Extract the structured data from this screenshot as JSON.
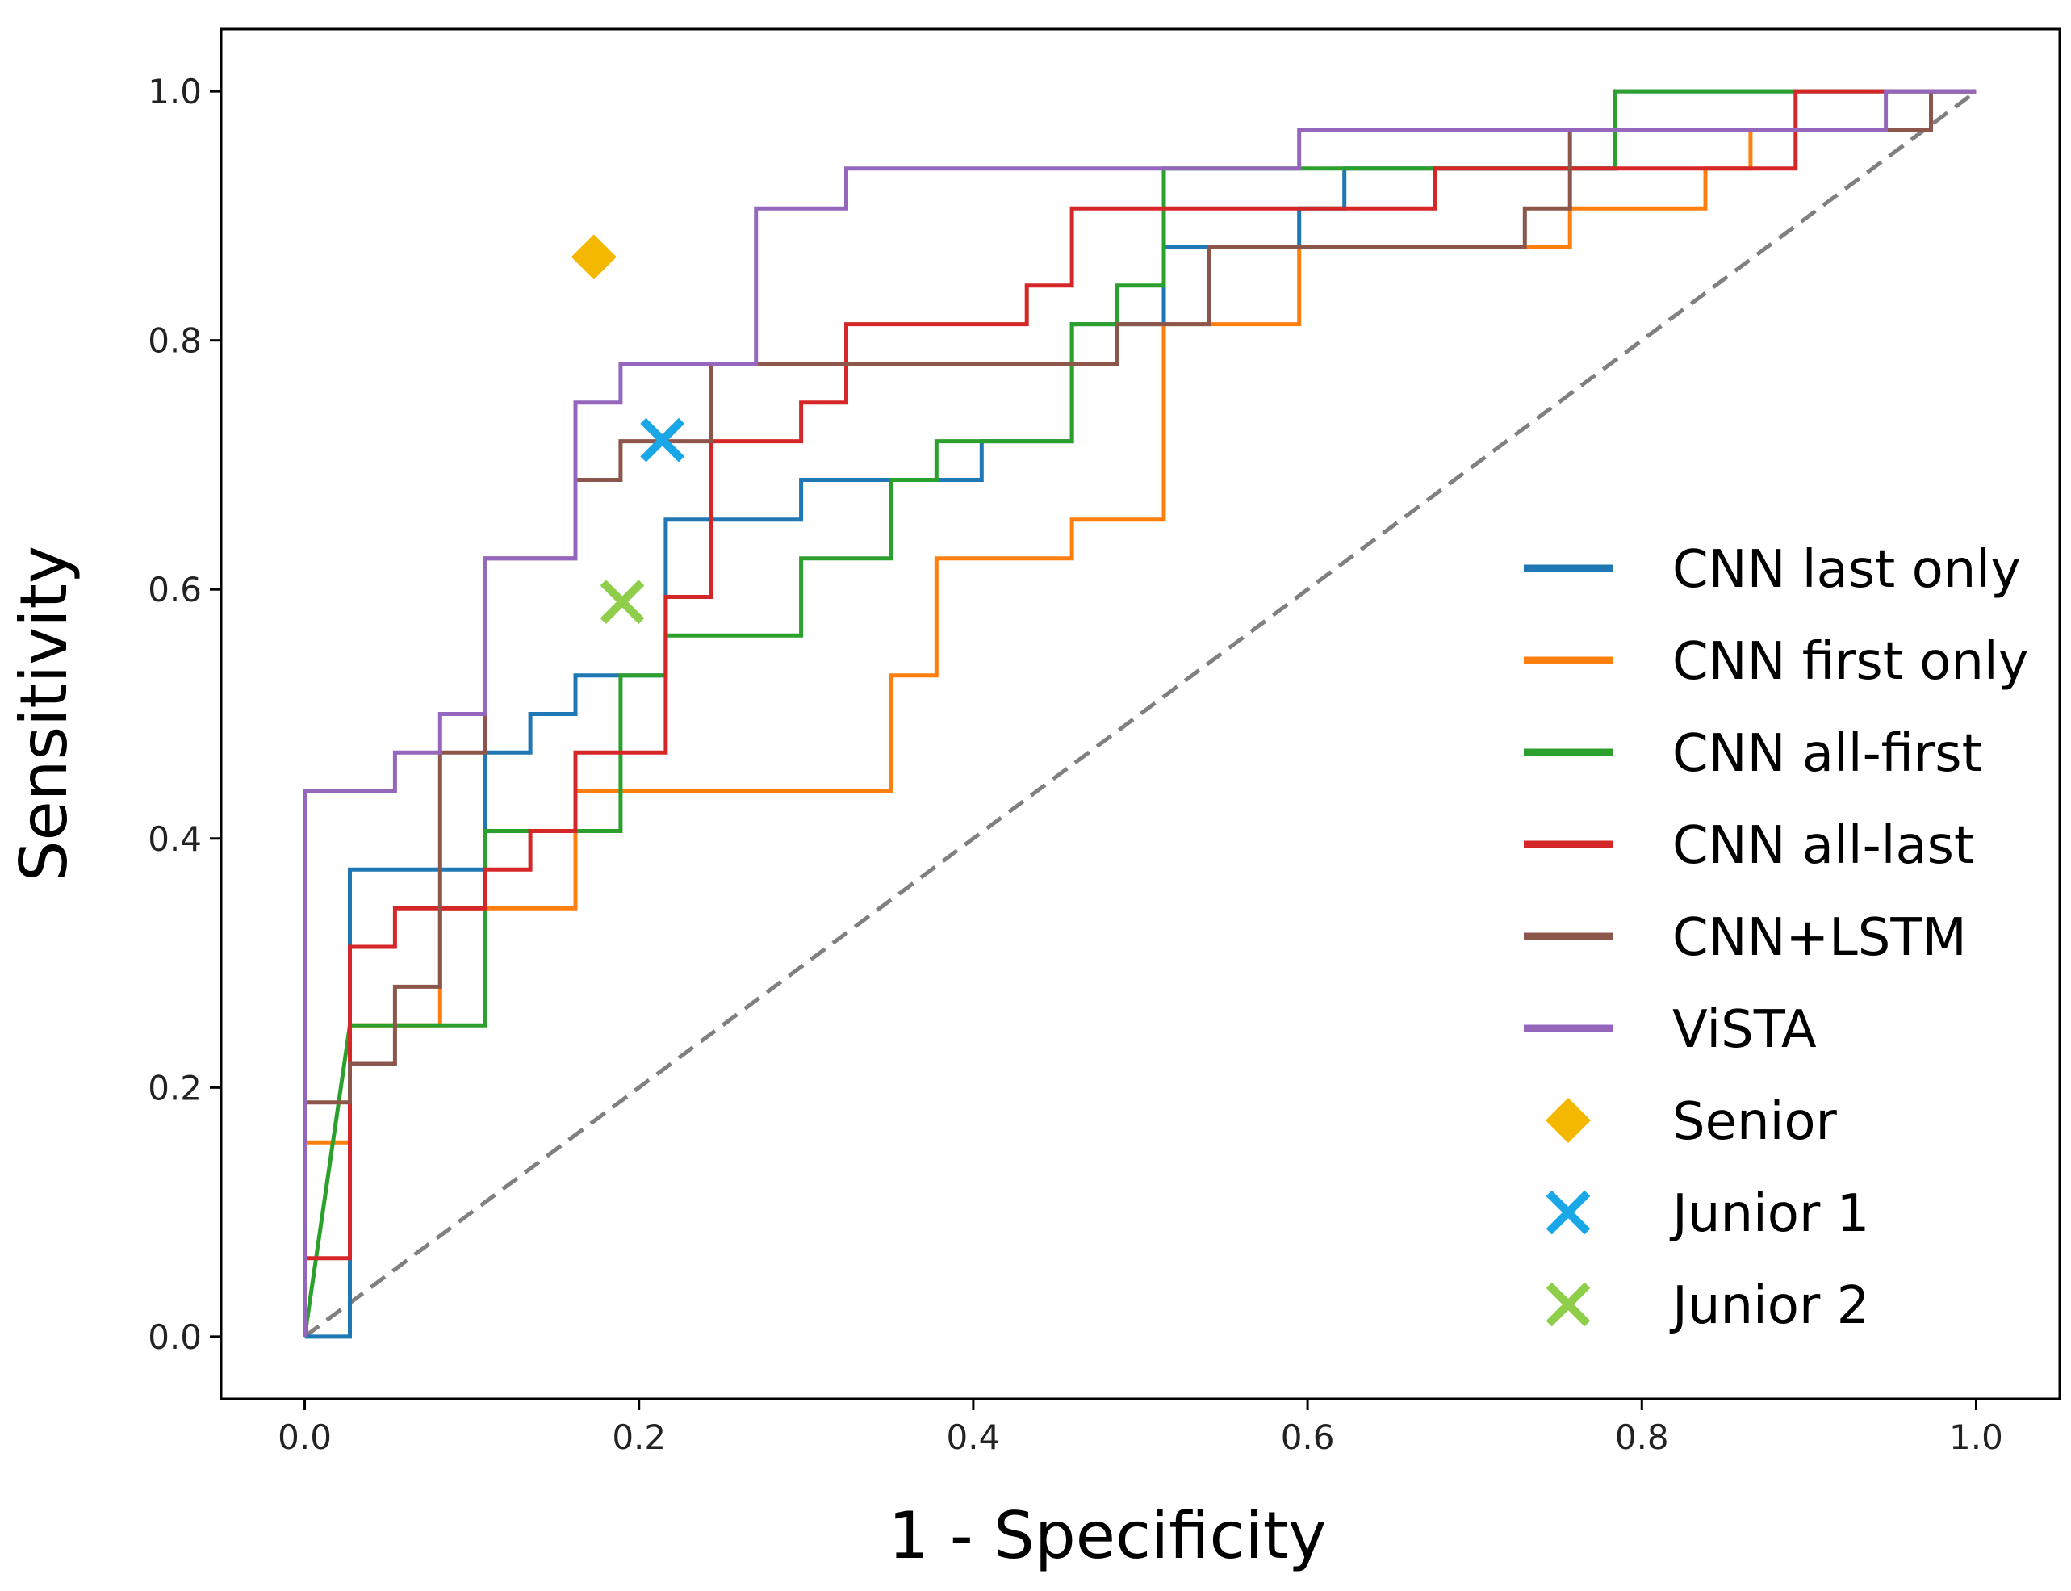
{
  "chart_data": {
    "type": "line",
    "title": "",
    "xlabel": "1 - Specificity",
    "ylabel": "Sensitivity",
    "xlim": [
      -0.05,
      1.05
    ],
    "ylim": [
      -0.05,
      1.05
    ],
    "xticks": [
      0.0,
      0.2,
      0.4,
      0.6,
      0.8,
      1.0
    ],
    "yticks": [
      0.0,
      0.2,
      0.4,
      0.6,
      0.8,
      1.0
    ],
    "xtick_labels": [
      "0.0",
      "0.2",
      "0.4",
      "0.6",
      "0.8",
      "1.0"
    ],
    "ytick_labels": [
      "0.0",
      "0.2",
      "0.4",
      "0.6",
      "0.8",
      "1.0"
    ],
    "grid": false,
    "legend_position": "right",
    "diagonal": {
      "x": [
        0,
        1
      ],
      "y": [
        0,
        1
      ],
      "color": "#808080",
      "style": "dashed"
    },
    "series": [
      {
        "name": "CNN last only",
        "color": "#1f77b4",
        "x": [
          0,
          0.027,
          0.027,
          0.108,
          0.108,
          0.135,
          0.135,
          0.162,
          0.162,
          0.216,
          0.216,
          0.297,
          0.297,
          0.405,
          0.405,
          0.459,
          0.459,
          0.514,
          0.514,
          0.595,
          0.595,
          0.622,
          0.622,
          0.784,
          0.784,
          0.946,
          0.946,
          1.0
        ],
        "y": [
          0,
          0,
          0.375,
          0.375,
          0.469,
          0.469,
          0.5,
          0.5,
          0.531,
          0.531,
          0.656,
          0.656,
          0.688,
          0.688,
          0.719,
          0.719,
          0.813,
          0.813,
          0.875,
          0.875,
          0.906,
          0.906,
          0.938,
          0.938,
          1.0,
          1.0,
          1.0,
          1.0
        ]
      },
      {
        "name": "CNN first only",
        "color": "#ff7f0e",
        "x": [
          0,
          0,
          0.027,
          0.027,
          0.081,
          0.081,
          0.162,
          0.162,
          0.351,
          0.351,
          0.378,
          0.378,
          0.459,
          0.459,
          0.514,
          0.514,
          0.595,
          0.595,
          0.757,
          0.757,
          0.838,
          0.838,
          0.865,
          0.865,
          0.973,
          0.973,
          1.0
        ],
        "y": [
          0,
          0.156,
          0.156,
          0.25,
          0.25,
          0.344,
          0.344,
          0.438,
          0.438,
          0.531,
          0.531,
          0.625,
          0.625,
          0.656,
          0.656,
          0.813,
          0.813,
          0.875,
          0.875,
          0.906,
          0.906,
          0.938,
          0.938,
          0.969,
          0.969,
          1.0,
          1.0
        ]
      },
      {
        "name": "CNN all-first",
        "color": "#2ca02c",
        "x": [
          0,
          0.027,
          0.027,
          0.108,
          0.108,
          0.189,
          0.189,
          0.216,
          0.216,
          0.297,
          0.297,
          0.351,
          0.351,
          0.378,
          0.378,
          0.459,
          0.459,
          0.486,
          0.486,
          0.514,
          0.514,
          0.595,
          0.595,
          0.784,
          0.784,
          0.892,
          0.892,
          1.0
        ],
        "y": [
          0,
          0.25,
          0.25,
          0.25,
          0.406,
          0.406,
          0.531,
          0.531,
          0.563,
          0.563,
          0.625,
          0.625,
          0.688,
          0.688,
          0.719,
          0.719,
          0.813,
          0.813,
          0.844,
          0.844,
          0.938,
          0.938,
          0.938,
          0.938,
          1.0,
          1.0,
          1.0,
          1.0
        ]
      },
      {
        "name": "CNN all-last",
        "color": "#d62728",
        "x": [
          0,
          0,
          0.027,
          0.027,
          0.054,
          0.054,
          0.108,
          0.108,
          0.135,
          0.135,
          0.162,
          0.162,
          0.216,
          0.216,
          0.243,
          0.243,
          0.297,
          0.297,
          0.324,
          0.324,
          0.432,
          0.432,
          0.459,
          0.459,
          0.676,
          0.676,
          0.892,
          0.892,
          1.0
        ],
        "y": [
          0,
          0.063,
          0.063,
          0.313,
          0.313,
          0.344,
          0.344,
          0.375,
          0.375,
          0.406,
          0.406,
          0.469,
          0.469,
          0.594,
          0.594,
          0.719,
          0.719,
          0.75,
          0.75,
          0.813,
          0.813,
          0.844,
          0.844,
          0.906,
          0.906,
          0.938,
          0.938,
          1.0,
          1.0
        ]
      },
      {
        "name": "CNN+LSTM",
        "color": "#8c564b",
        "x": [
          0,
          0,
          0.027,
          0.027,
          0.054,
          0.054,
          0.081,
          0.081,
          0.108,
          0.108,
          0.162,
          0.162,
          0.189,
          0.189,
          0.243,
          0.243,
          0.486,
          0.486,
          0.541,
          0.541,
          0.73,
          0.73,
          0.757,
          0.757,
          0.973,
          0.973,
          1.0
        ],
        "y": [
          0,
          0.188,
          0.188,
          0.219,
          0.219,
          0.281,
          0.281,
          0.469,
          0.469,
          0.625,
          0.625,
          0.688,
          0.688,
          0.719,
          0.719,
          0.781,
          0.781,
          0.813,
          0.813,
          0.875,
          0.875,
          0.906,
          0.906,
          0.969,
          0.969,
          1.0,
          1.0
        ]
      },
      {
        "name": "ViSTA",
        "color": "#9467bd",
        "x": [
          0,
          0,
          0.054,
          0.054,
          0.081,
          0.081,
          0.108,
          0.108,
          0.162,
          0.162,
          0.189,
          0.189,
          0.27,
          0.27,
          0.324,
          0.324,
          0.595,
          0.595,
          0.946,
          0.946,
          1.0
        ],
        "y": [
          0,
          0.438,
          0.438,
          0.469,
          0.469,
          0.5,
          0.5,
          0.625,
          0.625,
          0.75,
          0.75,
          0.781,
          0.781,
          0.906,
          0.906,
          0.938,
          0.938,
          0.969,
          0.969,
          1.0,
          1.0
        ]
      }
    ],
    "points": [
      {
        "name": "Senior",
        "x": 0.173,
        "y": 0.867,
        "color": "#f5b800",
        "marker": "diamond"
      },
      {
        "name": "Junior 1",
        "x": 0.214,
        "y": 0.72,
        "color": "#1aa7e8",
        "marker": "x"
      },
      {
        "name": "Junior 2",
        "x": 0.19,
        "y": 0.59,
        "color": "#8fce4a",
        "marker": "x"
      }
    ]
  }
}
